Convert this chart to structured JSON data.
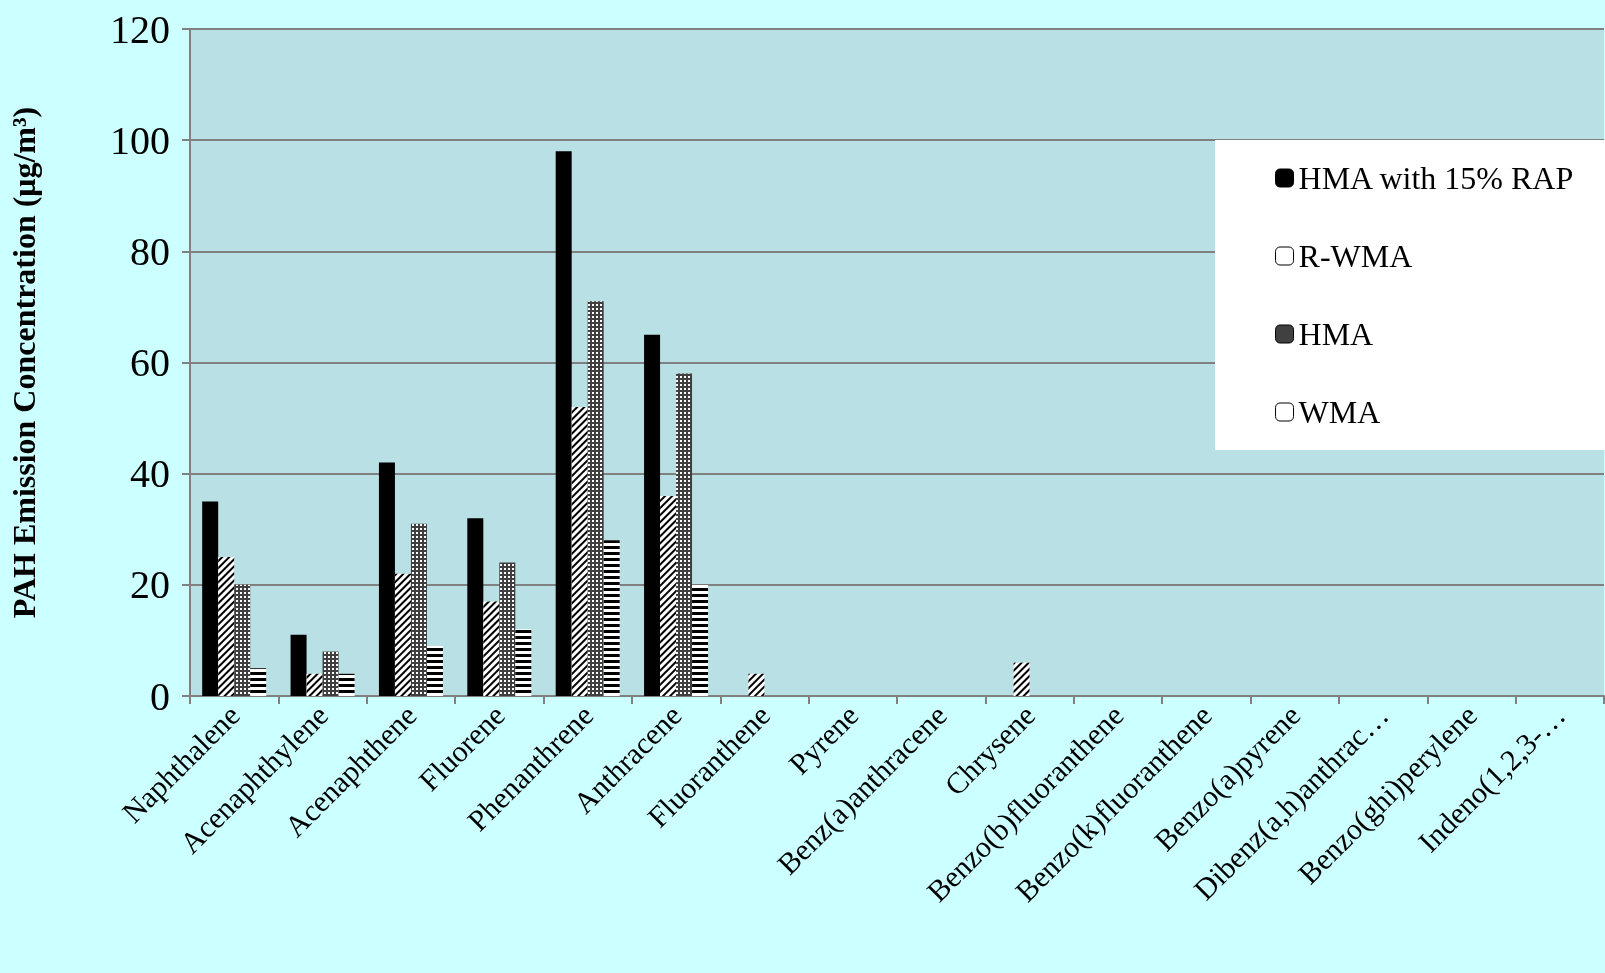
{
  "chart_data": {
    "type": "bar",
    "ylabel": "PAH Emission Concentration (μg/m³)",
    "categories": [
      "Naphthalene",
      "Acenaphthylene",
      "Acenaphthene",
      "Fluorene",
      "Phenanthrene",
      "Anthracene",
      "Fluoranthene",
      "Pyrene",
      "Benz(a)anthracene",
      "Chrysene",
      "Benzo(b)fluoranthene",
      "Benzo(k)fluoranthene",
      "Benzo(a)pyrene",
      "Dibenz(a,h)anthrac…",
      "Benzo(ghi)perylene",
      "Indeno(1,2,3-…"
    ],
    "series": [
      {
        "name": "HMA with 15% RAP",
        "color": "#000000",
        "values": [
          35,
          11,
          42,
          32,
          98,
          65,
          0,
          0,
          0,
          0,
          0,
          0,
          0,
          0,
          0,
          0
        ]
      },
      {
        "name": "R-WMA",
        "color": "#ffffff",
        "values": [
          25,
          4,
          22,
          17,
          52,
          36,
          4,
          0,
          0,
          6,
          0,
          0,
          0,
          0,
          0,
          0
        ]
      },
      {
        "name": "HMA",
        "color": "#404040",
        "values": [
          20,
          8,
          31,
          24,
          71,
          58,
          0,
          0,
          0,
          0,
          0,
          0,
          0,
          0,
          0,
          0
        ]
      },
      {
        "name": "WMA",
        "color": "#ffffff",
        "values": [
          5,
          4,
          9,
          12,
          28,
          20,
          0,
          0,
          0,
          0,
          0,
          0,
          0,
          0,
          0,
          0
        ]
      }
    ],
    "ylim": [
      0,
      120
    ],
    "yticks": [
      0,
      20,
      40,
      60,
      80,
      100,
      120
    ],
    "grid": "y",
    "legend": "top right"
  }
}
